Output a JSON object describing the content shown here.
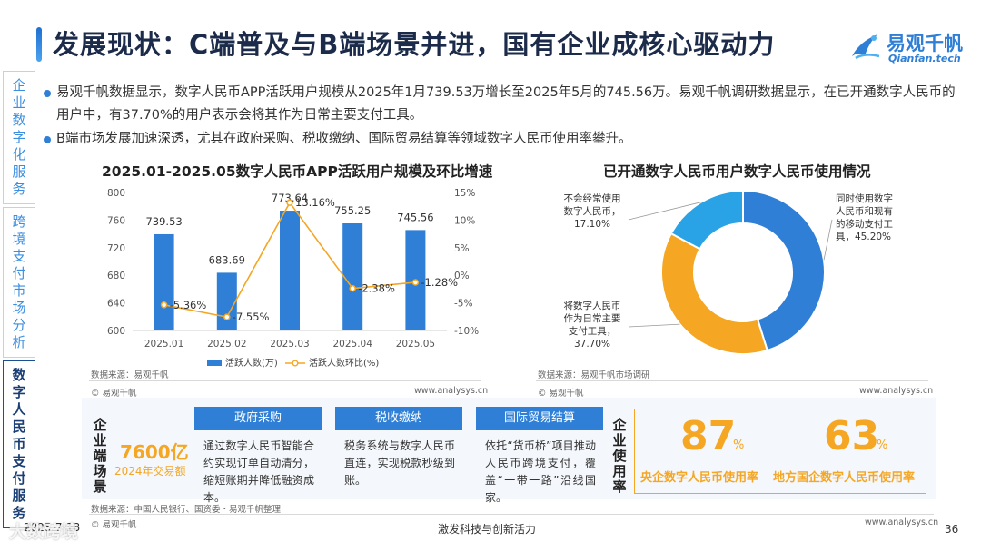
{
  "page": {
    "title": "发展现状：C端普及与B端场景并进，国有企业成核心驱动力",
    "logo_cn": "易观千帆",
    "logo_en": "Qianfan.tech"
  },
  "side_nav": [
    {
      "label": "企业数字化服务"
    },
    {
      "label": "跨境支付市场分析"
    },
    {
      "label": "数字人民币支付服务"
    }
  ],
  "bullets": [
    "易观千帆数据显示，数字人民币APP活跃用户规模从2025年1月739.53万增长至2025年5月的745.56万。易观千帆调研数据显示，在已开通数字人民币的用户中，有37.70%的用户表示会将其作为日常主要支付工具。",
    "B端市场发展加速深透，尤其在政府采购、税收缴纳、国际贸易结算等领域数字人民币使用率攀升。"
  ],
  "chart_data": [
    {
      "type": "bar",
      "title": "2025.01-2025.05数字人民币APP活跃用户规模及环比增速",
      "categories": [
        "2025.01",
        "2025.02",
        "2025.03",
        "2025.04",
        "2025.05"
      ],
      "series": [
        {
          "name": "活跃人数(万)",
          "type": "bar",
          "axis": "left",
          "values": [
            739.53,
            683.69,
            773.64,
            755.25,
            745.56
          ],
          "color": "#2f7fd6"
        },
        {
          "name": "活跃人数环比(%)",
          "type": "line",
          "axis": "right",
          "values": [
            -5.36,
            -7.55,
            13.16,
            -2.38,
            -1.28
          ],
          "color": "#f5a623"
        }
      ],
      "bar_labels": [
        "739.53",
        "683.69",
        "773.64",
        "755.25",
        "745.56"
      ],
      "line_labels": [
        "-5.36%",
        "-7.55%",
        "13.16%",
        "-2.38%",
        "-1.28%"
      ],
      "ylim": [
        600,
        800
      ],
      "yticks": [
        "600",
        "640",
        "680",
        "720",
        "760",
        "800"
      ],
      "y2lim": [
        -10,
        15
      ],
      "y2ticks": [
        "-10%",
        "-5%",
        "0%",
        "5%",
        "10%",
        "15%"
      ],
      "legend_position": "bottom",
      "source": "数据来源：易观千帆",
      "copyright": "© 易观千帆",
      "site": "www.analysys.cn"
    },
    {
      "type": "pie",
      "title": "已开通数字人民币用户数字人民币使用情况",
      "slices": [
        {
          "label": "同时使用数字人民币和现有的移动支付工具，45.20%",
          "lines": [
            "同时使用数字",
            "人民币和现有",
            "的移动支付工",
            "具，45.20%"
          ],
          "value": 45.2,
          "color": "#2f7fd6"
        },
        {
          "label": "将数字人民币作为日常主要支付工具，37.70%",
          "lines": [
            "将数字人民币",
            "作为日常主要",
            "支付工具，",
            "37.70%"
          ],
          "value": 37.7,
          "color": "#f5a623"
        },
        {
          "label": "不会经常使用数字人民币，17.10%",
          "lines": [
            "不会经常使用",
            "数字人民币，",
            "17.10%"
          ],
          "value": 17.1,
          "color": "#2aa3e6"
        }
      ],
      "source": "数据来源：易观千帆市场调研",
      "copyright": "© 易观千帆",
      "site": "www.analysys.cn"
    }
  ],
  "scenes": {
    "label": "企业端场景",
    "amount": "7600亿",
    "amount_sub": "2024年交易额",
    "cards": [
      {
        "head": "政府采购",
        "body": "通过数字人民币智能合约实现订单自动清分，缩短账期并降低融资成本。"
      },
      {
        "head": "税收缴纳",
        "body": "税务系统与数字人民币直连，实现税款秒级到账。"
      },
      {
        "head": "国际贸易结算",
        "body": "依托“货币桥”项目推动人民币跨境支付，覆盖“一带一路”沿线国家。"
      }
    ],
    "usage_label": "企业使用率",
    "rates": [
      {
        "num": "87",
        "unit": "%",
        "label": "央企数字人民币使用率"
      },
      {
        "num": "63",
        "unit": "%",
        "label": "地方国企数字人民币使用率"
      }
    ],
    "source": "数据来源：中国人民银行、国资委・易观千帆整理",
    "copyright": "© 易观千帆",
    "site": "www.analysys.cn"
  },
  "footer": {
    "date": "2025-7-18",
    "center": "激发科技与创新活力",
    "page": "36",
    "watermark": "大数跨境"
  }
}
